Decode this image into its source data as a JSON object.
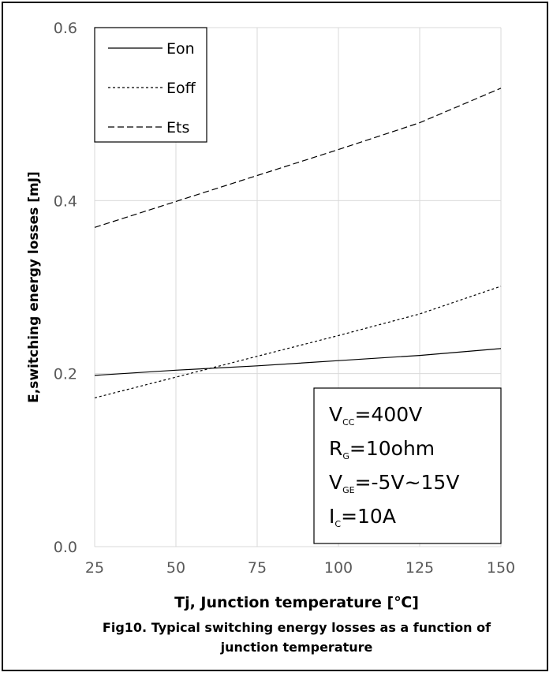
{
  "chart_data": {
    "type": "line",
    "xlabel": "Tj, Junction temperature [℃]",
    "ylabel": "E,switching energy losses [mJ]",
    "xlim": [
      25,
      150
    ],
    "ylim": [
      0.0,
      0.6
    ],
    "xticks": [
      "25",
      "50",
      "75",
      "100",
      "125",
      "150"
    ],
    "yticks": [
      "0.0",
      "0.2",
      "0.4",
      "0.6"
    ],
    "grid": true,
    "legend_position": "top-left",
    "x": [
      25,
      50,
      75,
      100,
      125,
      150
    ],
    "series": [
      {
        "name": "Eon",
        "style": "solid",
        "values": [
          0.198,
          0.204,
          0.209,
          0.215,
          0.221,
          0.229
        ]
      },
      {
        "name": "Eoff",
        "style": "dotted",
        "values": [
          0.172,
          0.196,
          0.22,
          0.244,
          0.269,
          0.301
        ]
      },
      {
        "name": "Ets",
        "style": "dashed",
        "values": [
          0.369,
          0.399,
          0.429,
          0.459,
          0.49,
          0.53
        ]
      }
    ],
    "annotation": [
      {
        "main": "V",
        "sub": "CC",
        "rest": "=400V"
      },
      {
        "main": "R",
        "sub": "G",
        "rest": "=10ohm"
      },
      {
        "main": "V",
        "sub": "GE",
        "rest": "=-5V~15V"
      },
      {
        "main": "I",
        "sub": "C",
        "rest": "=10A"
      }
    ],
    "caption": [
      "Fig10. Typical switching energy losses as a function of",
      "junction temperature"
    ]
  }
}
